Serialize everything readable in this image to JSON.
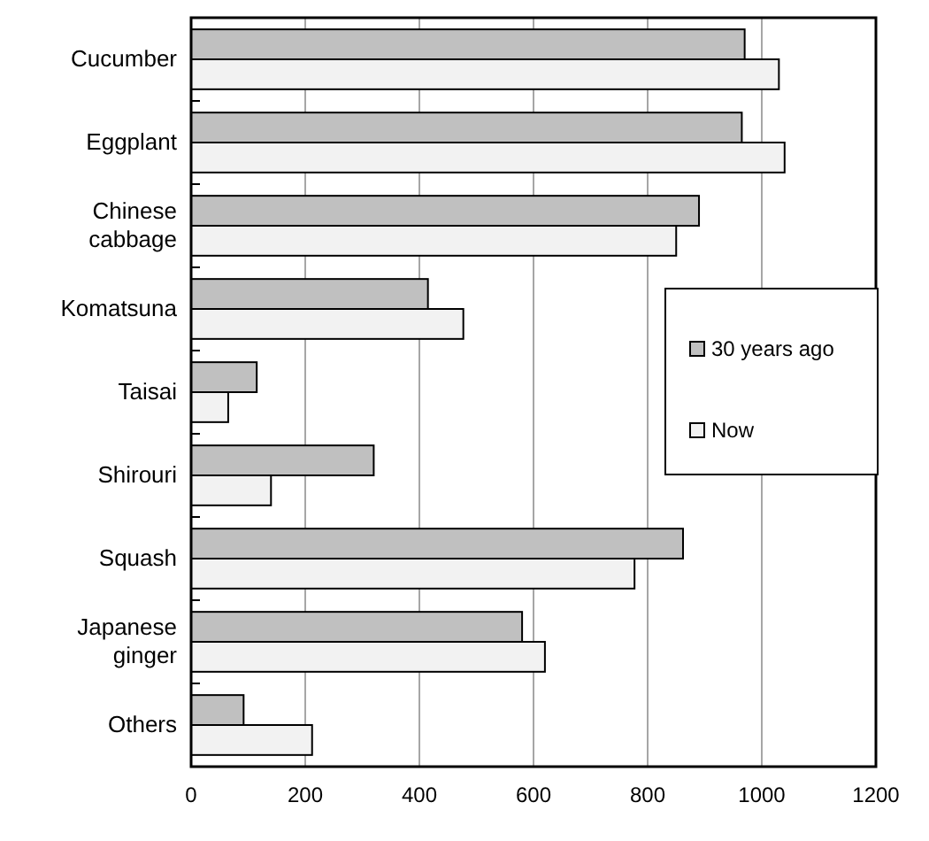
{
  "chart_data": {
    "type": "bar",
    "orientation": "horizontal",
    "categories": [
      "Cucumber",
      "Eggplant",
      "Chinese cabbage",
      "Komatsuna",
      "Taisai",
      "Shirouri",
      "Squash",
      "Japanese ginger",
      "Others"
    ],
    "series": [
      {
        "name": "30 years ago",
        "color": "#c0c0c0",
        "values": [
          970,
          965,
          890,
          415,
          115,
          320,
          862,
          580,
          92
        ]
      },
      {
        "name": "Now",
        "color": "#f2f2f2",
        "values": [
          1030,
          1040,
          850,
          477,
          65,
          140,
          777,
          620,
          212
        ]
      }
    ],
    "xlim": [
      0,
      1200
    ],
    "xticks": [
      0,
      200,
      400,
      600,
      800,
      1000,
      1200
    ],
    "grid": "x",
    "legend": "right"
  }
}
